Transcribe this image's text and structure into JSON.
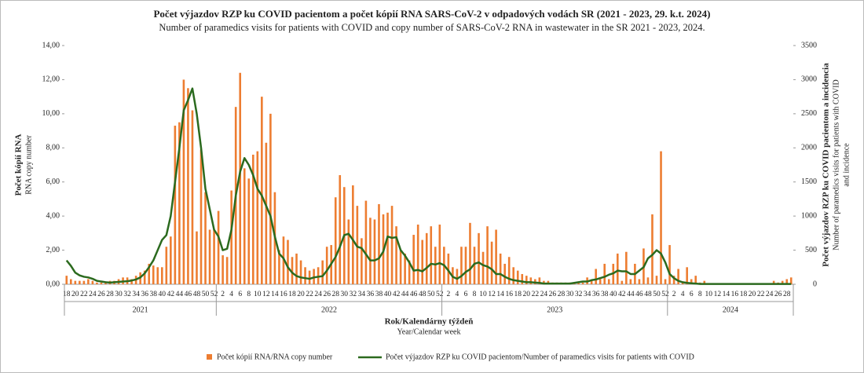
{
  "chart_data": {
    "type": "bar-line",
    "title": "Počet výjazdov RZP ku COVID pacientom a počet kópií RNA  SARS-CoV-2 v odpadových vodách SR (2021 - 2023, 29. k.t. 2024)",
    "subtitle": "Number of paramedics visits for patients with COVID and copy number of SARS-CoV-2 RNA  in wastewater in the SR 2021  - 2023, 2024.",
    "y_label": "Počet kópií RNA",
    "y_label_en": "RNA copy number",
    "y2_label": "Počet výjazdov RZP ku COVID pacientom a incidencia",
    "y2_label_en": "Number of paramedics visits for patients with COVID",
    "y2_label_en2": "and incidence",
    "x_label": "Rok/Kalendárny týždeň",
    "x_label_en": "Year/Calendar week",
    "year_groups": [
      {
        "label": "2021",
        "weeks": 35
      },
      {
        "label": "2022",
        "weeks": 52
      },
      {
        "label": "2023",
        "weeks": 52
      },
      {
        "label": "2024",
        "weeks": 29
      }
    ],
    "categories": [
      "18",
      null,
      "20",
      null,
      "22",
      null,
      "24",
      null,
      "26",
      null,
      "28",
      null,
      "30",
      null,
      "32",
      null,
      "34",
      null,
      "36",
      null,
      "38",
      null,
      "40",
      null,
      "42",
      null,
      "44",
      null,
      "46",
      null,
      "48",
      null,
      "50",
      null,
      "52",
      null,
      "2",
      null,
      "4",
      null,
      "6",
      null,
      "8",
      null,
      "10",
      null,
      "12",
      null,
      "14",
      null,
      "16",
      null,
      "18",
      null,
      "20",
      null,
      "22",
      null,
      "24",
      null,
      "26",
      null,
      "28",
      null,
      "30",
      null,
      "32",
      null,
      "34",
      null,
      "36",
      null,
      "38",
      null,
      "40",
      null,
      "42",
      null,
      "44",
      null,
      "46",
      null,
      "48",
      null,
      "50",
      null,
      "52",
      null,
      "2",
      null,
      "4",
      null,
      "6",
      null,
      "8",
      null,
      "10",
      null,
      "12",
      null,
      "14",
      null,
      "16",
      null,
      "18",
      null,
      "20",
      null,
      "22",
      null,
      "24",
      null,
      "26",
      null,
      "28",
      null,
      "30",
      null,
      "32",
      null,
      "34",
      null,
      "36",
      null,
      "38",
      null,
      "40",
      null,
      "42",
      null,
      "44",
      null,
      "46",
      null,
      "48",
      null,
      "50",
      null,
      "52",
      null,
      "2",
      null,
      "4",
      null,
      "6",
      null,
      "8",
      null,
      "10",
      null,
      "12",
      null,
      "14",
      null,
      "16",
      null,
      "18",
      null,
      "20",
      null,
      "22",
      null,
      "24",
      null,
      "26",
      null,
      "28",
      null
    ],
    "series": [
      {
        "name": "Počet kópií RNA/RNA copy number",
        "type": "bar",
        "color": "#ed7d31",
        "values": [
          0.5,
          0.3,
          0.2,
          0.2,
          0.2,
          0.3,
          0.2,
          0.1,
          0.1,
          0.1,
          0.2,
          0.2,
          0.3,
          0.4,
          0.4,
          0.3,
          0.5,
          0.7,
          0.8,
          1.2,
          1.1,
          1.0,
          1.0,
          2.2,
          2.8,
          9.3,
          9.5,
          12.0,
          11.5,
          10.2,
          3.1,
          7.9,
          5.4,
          3.2,
          3.2,
          4.3,
          1.7,
          1.6,
          5.5,
          10.4,
          12.4,
          6.8,
          6.2,
          7.6,
          7.8,
          11.0,
          8.3,
          10.0,
          5.4,
          2.0,
          2.8,
          2.6,
          1.6,
          1.8,
          1.4,
          1.0,
          0.8,
          0.9,
          1.0,
          1.4,
          2.2,
          2.3,
          5.1,
          6.4,
          5.7,
          3.8,
          5.8,
          4.6,
          2.7,
          4.9,
          3.9,
          3.8,
          4.7,
          4.1,
          4.2,
          4.6,
          3.4,
          2.0,
          1.8,
          1.4,
          2.9,
          3.5,
          2.6,
          3.0,
          3.4,
          2.2,
          3.5,
          2.2,
          1.8,
          1.0,
          0.9,
          2.2,
          2.2,
          3.6,
          2.2,
          3.0,
          1.9,
          3.4,
          2.5,
          3.2,
          1.8,
          1.2,
          1.6,
          1.0,
          0.8,
          0.6,
          0.5,
          0.4,
          0.3,
          0.4,
          0.2,
          0.2,
          0.1,
          0.1,
          0.1,
          0.1,
          0.1,
          0.1,
          0.1,
          0.1,
          0.4,
          0.2,
          0.9,
          0.3,
          1.2,
          0.3,
          1.2,
          1.8,
          0.2,
          1.9,
          0.3,
          1.2,
          0.3,
          2.1,
          0.4,
          4.1,
          0.5,
          7.8,
          0.3,
          2.3,
          0.5,
          0.9,
          0.1,
          1.0,
          0.3,
          0.5,
          0.1,
          0.2,
          0.05,
          0.05,
          0.05,
          0.05,
          0.05,
          0.05,
          0.05,
          0.05,
          0.05,
          0.05,
          0.05,
          0.05,
          0.05,
          0.05,
          0.05,
          0.2,
          0.1,
          0.2,
          0.3,
          0.4
        ]
      },
      {
        "name": "Počet výjazdov RZP ku COVID pacientom/Number of paramedics visits for patients with COVID",
        "type": "line",
        "axis": "y2",
        "color": "#2b6a1e",
        "values": [
          350,
          270,
          170,
          130,
          110,
          100,
          80,
          50,
          40,
          30,
          25,
          30,
          35,
          40,
          45,
          55,
          70,
          100,
          160,
          250,
          350,
          500,
          650,
          720,
          1000,
          1500,
          2000,
          2550,
          2700,
          2870,
          2500,
          2000,
          1400,
          1100,
          800,
          700,
          500,
          520,
          800,
          1300,
          1650,
          1850,
          1750,
          1600,
          1400,
          1300,
          1150,
          1000,
          700,
          450,
          380,
          250,
          170,
          120,
          100,
          90,
          80,
          100,
          110,
          120,
          200,
          300,
          400,
          550,
          720,
          740,
          650,
          550,
          530,
          440,
          350,
          350,
          380,
          480,
          700,
          680,
          690,
          500,
          420,
          320,
          200,
          210,
          190,
          240,
          300,
          290,
          310,
          280,
          200,
          110,
          80,
          120,
          180,
          220,
          300,
          320,
          280,
          260,
          220,
          150,
          150,
          110,
          80,
          60,
          50,
          40,
          30,
          30,
          25,
          20,
          10,
          10,
          10,
          10,
          10,
          10,
          10,
          20,
          30,
          40,
          40,
          60,
          70,
          90,
          110,
          140,
          160,
          200,
          190,
          190,
          150,
          150,
          200,
          250,
          380,
          430,
          500,
          450,
          320,
          150,
          90,
          50,
          30,
          20,
          15,
          10,
          5,
          5,
          5,
          5,
          5,
          5,
          5,
          5,
          5,
          5,
          5,
          5,
          5,
          5,
          5,
          5,
          5,
          5,
          5,
          5,
          5,
          5
        ]
      }
    ],
    "ylim": [
      0,
      14
    ],
    "yticks": [
      {
        "value": 0,
        "label": "0,00"
      },
      {
        "value": 2,
        "label": "2,00"
      },
      {
        "value": 4,
        "label": "4,00"
      },
      {
        "value": 6,
        "label": "6,00"
      },
      {
        "value": 8,
        "label": "8,00"
      },
      {
        "value": 10,
        "label": "10,00"
      },
      {
        "value": 12,
        "label": "12,00"
      },
      {
        "value": 14,
        "label": "14,00"
      }
    ],
    "y2lim": [
      0,
      3500
    ],
    "y2ticks": [
      0,
      500,
      1000,
      1500,
      2000,
      2500,
      3000,
      3500
    ],
    "legend": "bottom"
  }
}
